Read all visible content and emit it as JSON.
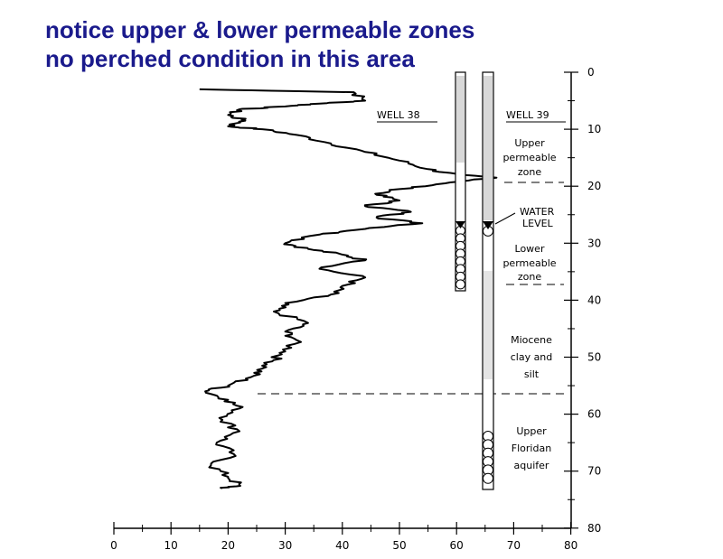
{
  "heading": {
    "line1": "notice upper & lower permeable zones",
    "line2": "no perched condition in this area"
  },
  "x_axis": {
    "ticks": [
      "0",
      "10",
      "20",
      "30",
      "40",
      "50",
      "60",
      "70",
      "80"
    ]
  },
  "depth_axis": {
    "ticks": [
      "0",
      "10",
      "20",
      "30",
      "40",
      "50",
      "60",
      "70",
      "80"
    ]
  },
  "wells": {
    "well38": {
      "label": "WELL 38",
      "bottom_depth": 38,
      "screen_top": 27
    },
    "well39": {
      "label": "WELL 39",
      "bottom_depth": 73,
      "screen_top": 63
    }
  },
  "water_level": {
    "line1": "WATER",
    "line2": "LEVEL",
    "depth": 26.5
  },
  "zones": {
    "upper_permeable": [
      "Upper",
      "permeable",
      "zone"
    ],
    "lower_permeable": [
      "Lower",
      "permeable",
      "zone"
    ],
    "miocene": [
      "Miocene",
      "clay and",
      "silt"
    ],
    "floridan": [
      "Upper",
      "Floridan",
      "aquifer"
    ]
  },
  "boundaries": [
    19,
    37,
    56
  ]
}
